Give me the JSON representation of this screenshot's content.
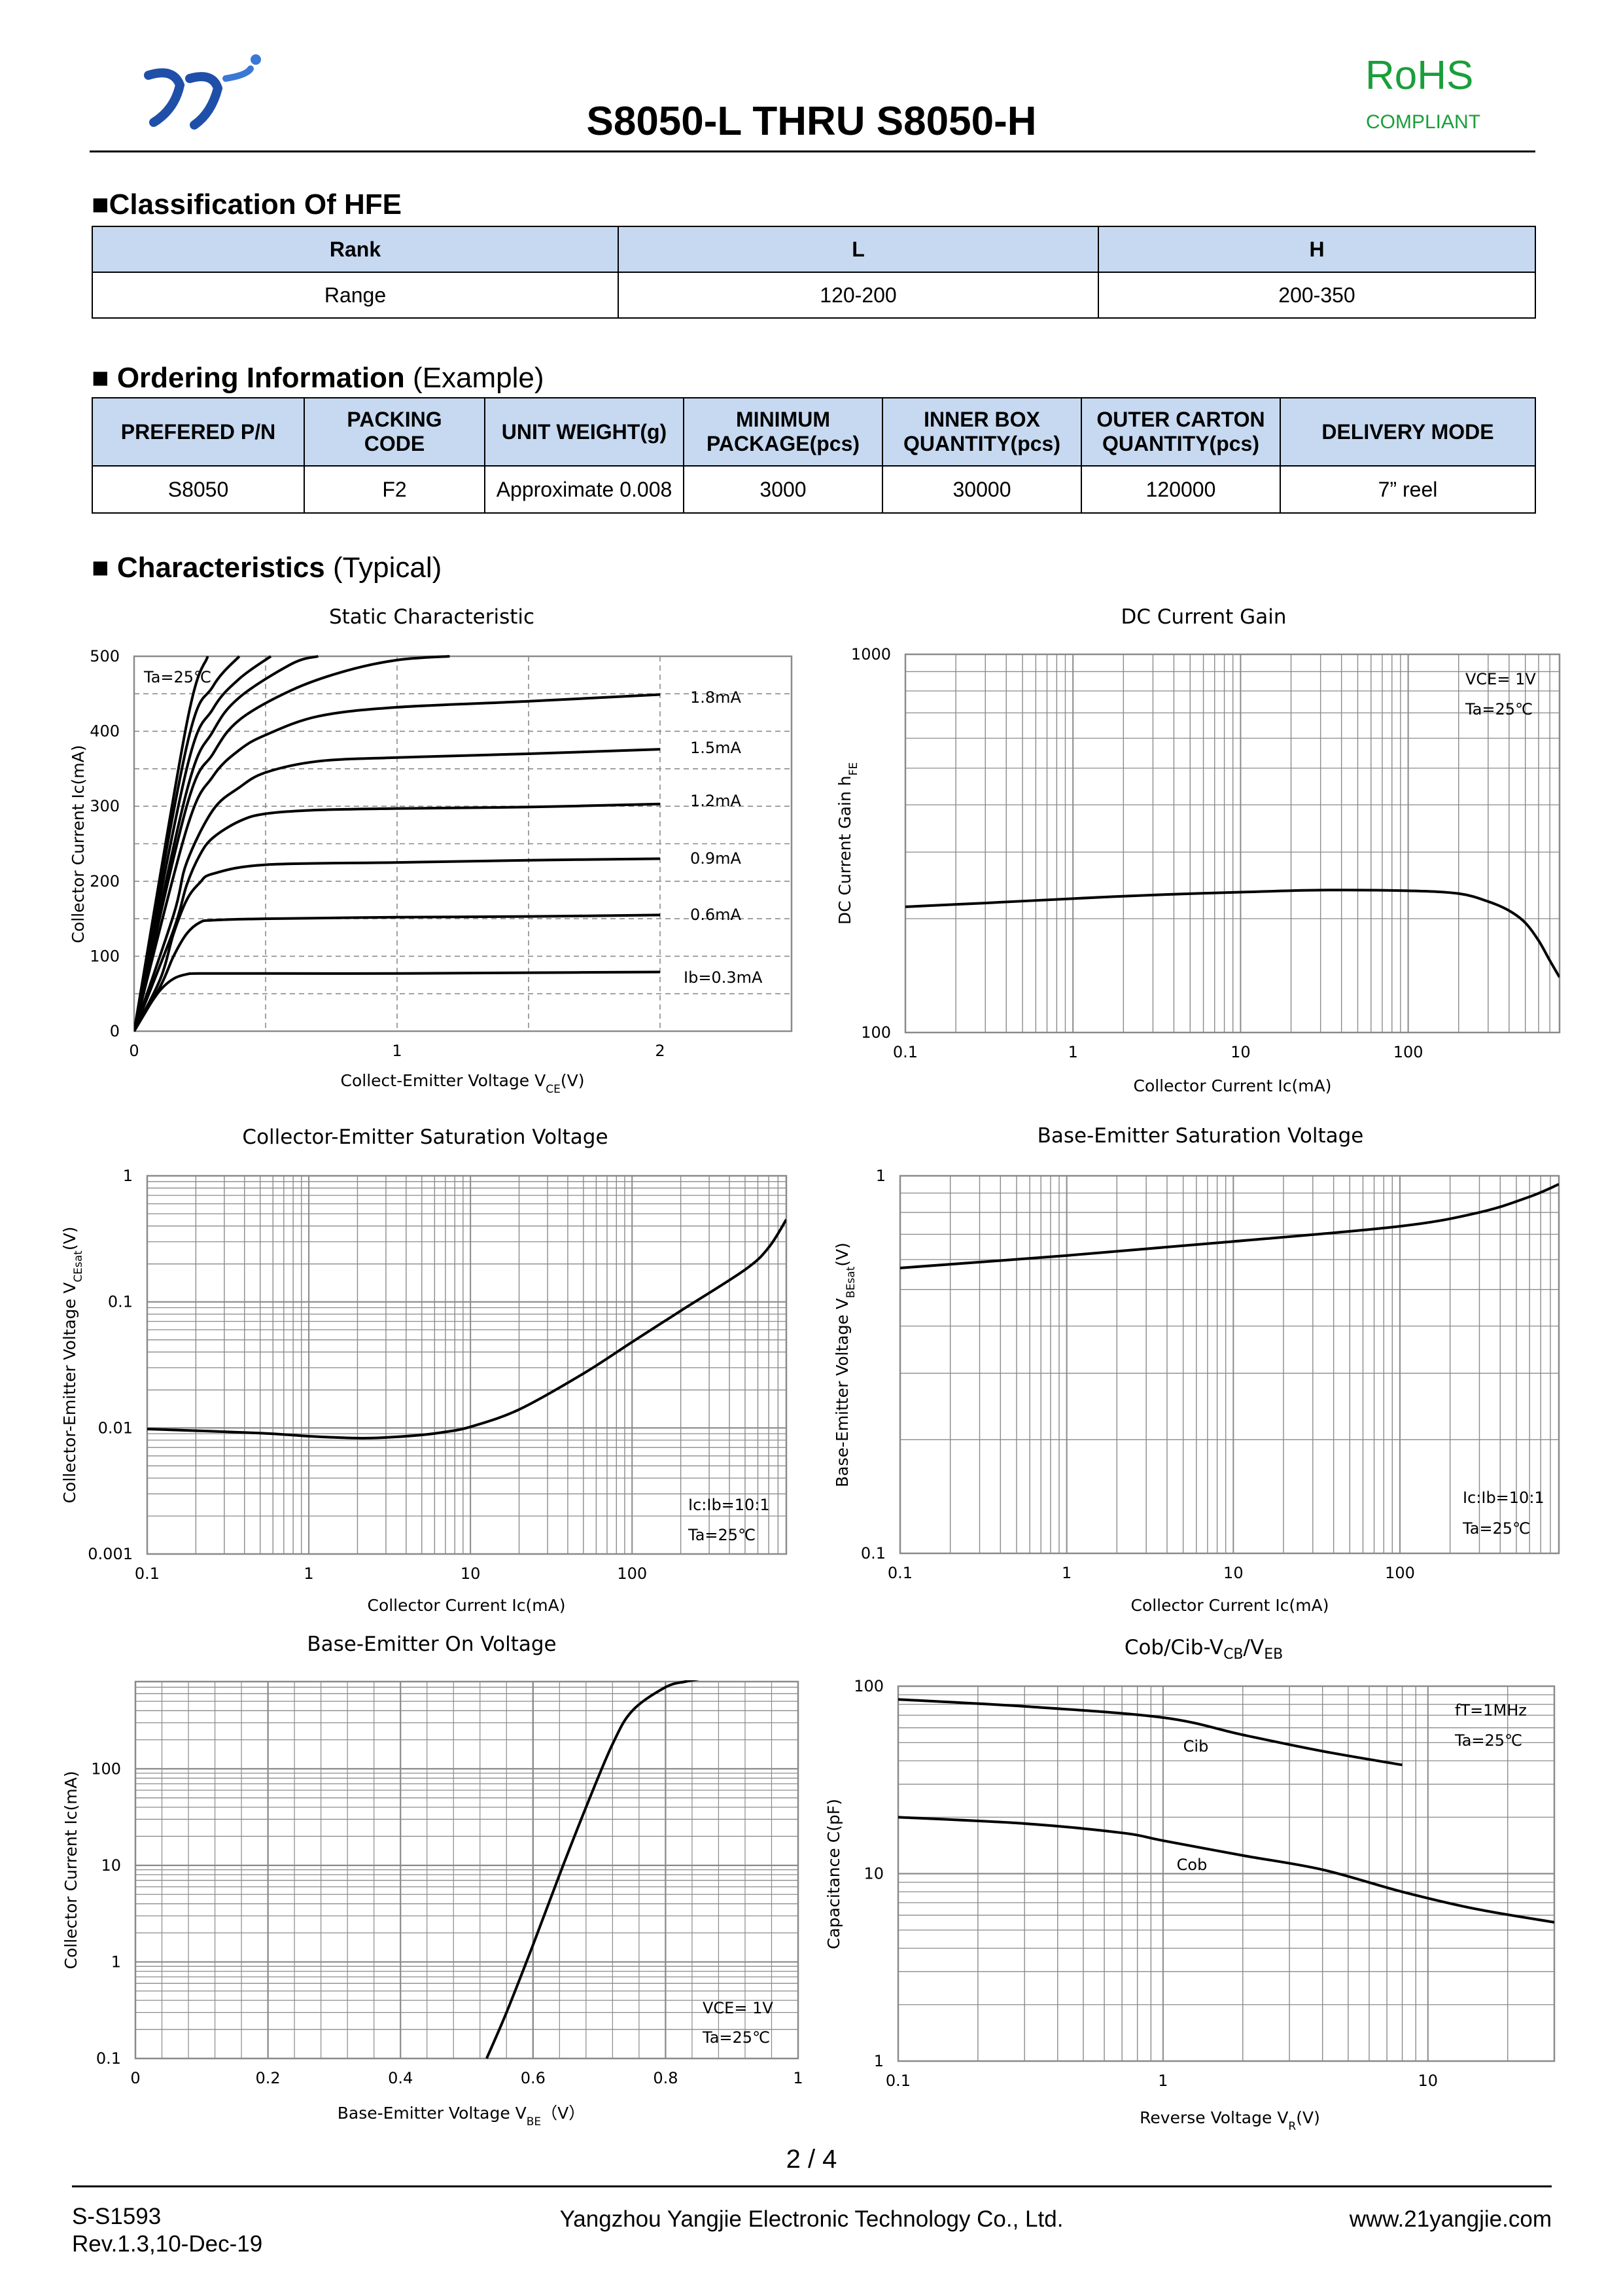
{
  "header": {
    "title": "S8050-L THRU S8050-H",
    "rohs": "RoHS",
    "compliant": "COMPLIANT",
    "logo_icon": "yj-logo-icon"
  },
  "hfe": {
    "heading": "Classification Of HFE",
    "headers": [
      "Rank",
      "L",
      "H"
    ],
    "row": [
      "Range",
      "120-200",
      "200-350"
    ]
  },
  "ordering": {
    "heading": "Ordering Information",
    "heading_note": "(Example)",
    "headers": [
      [
        "PREFERED P/N"
      ],
      [
        "PACKING",
        "CODE"
      ],
      [
        "UNIT WEIGHT(g)"
      ],
      [
        "MINIMUM",
        "PACKAGE(pcs)"
      ],
      [
        "INNER BOX",
        "QUANTITY(pcs)"
      ],
      [
        "OUTER CARTON",
        "QUANTITY(pcs)"
      ],
      [
        "DELIVERY MODE"
      ]
    ],
    "row": [
      "S8050",
      "F2",
      "Approximate 0.008",
      "3000",
      "30000",
      "120000",
      "7” reel"
    ]
  },
  "characteristics": {
    "heading": "Characteristics",
    "heading_note": "(Typical)"
  },
  "chart_data": [
    {
      "id": "static",
      "type": "line",
      "title": "Static Characteristic",
      "xlabel": "Collect-Emitter Voltage  VCE(V)",
      "ylabel": "Collector Current  Ic(mA)",
      "xlim": [
        0,
        2.5
      ],
      "ylim": [
        0,
        500
      ],
      "xticks": [
        "0",
        "1",
        "2"
      ],
      "yticks": [
        "0",
        "100",
        "200",
        "300",
        "400",
        "500"
      ],
      "annotations": [
        "Ta=25℃"
      ],
      "series": [
        {
          "name": "Ib=0.3mA",
          "x": [
            0,
            0.05,
            0.1,
            0.15,
            0.2,
            0.25,
            0.5,
            1,
            1.5,
            2
          ],
          "values": [
            0,
            30,
            55,
            70,
            76,
            77,
            77,
            77,
            78,
            79
          ]
        },
        {
          "name": "0.6mA",
          "x": [
            0,
            0.1,
            0.15,
            0.2,
            0.25,
            0.3,
            0.5,
            1,
            1.5,
            2
          ],
          "values": [
            0,
            60,
            100,
            130,
            145,
            148,
            150,
            152,
            153,
            155
          ]
        },
        {
          "name": "0.9mA",
          "x": [
            0,
            0.1,
            0.15,
            0.2,
            0.25,
            0.3,
            0.5,
            1,
            1.5,
            2
          ],
          "values": [
            0,
            70,
            130,
            175,
            198,
            210,
            222,
            225,
            228,
            230
          ]
        },
        {
          "name": "1.2mA",
          "x": [
            0,
            0.15,
            0.2,
            0.25,
            0.3,
            0.4,
            0.5,
            0.7,
            1,
            1.5,
            2
          ],
          "values": [
            0,
            135,
            195,
            235,
            258,
            280,
            290,
            295,
            297,
            299,
            303
          ]
        },
        {
          "name": "1.5mA",
          "x": [
            0,
            0.15,
            0.2,
            0.3,
            0.4,
            0.5,
            0.7,
            1,
            1.5,
            2
          ],
          "values": [
            0,
            155,
            225,
            295,
            325,
            345,
            360,
            365,
            370,
            376
          ]
        },
        {
          "name": "1.8mA",
          "x": [
            0,
            0.2,
            0.3,
            0.4,
            0.5,
            0.7,
            1,
            1.5,
            2
          ],
          "values": [
            0,
            270,
            340,
            375,
            395,
            420,
            432,
            440,
            449
          ]
        },
        {
          "name": "",
          "x": [
            0,
            0.2,
            0.3,
            0.4,
            0.6,
            0.8,
            1,
            1.2
          ],
          "values": [
            0,
            300,
            370,
            415,
            455,
            480,
            495,
            500
          ]
        },
        {
          "name": "",
          "x": [
            0,
            0.2,
            0.3,
            0.4,
            0.6,
            0.7
          ],
          "values": [
            0,
            320,
            400,
            445,
            490,
            500
          ]
        },
        {
          "name": "",
          "x": [
            0,
            0.2,
            0.3,
            0.4,
            0.52
          ],
          "values": [
            0,
            350,
            430,
            470,
            500
          ]
        },
        {
          "name": "",
          "x": [
            0,
            0.2,
            0.3,
            0.4
          ],
          "values": [
            0,
            380,
            460,
            500
          ]
        },
        {
          "name": "",
          "x": [
            0,
            0.2,
            0.28
          ],
          "values": [
            0,
            410,
            500
          ]
        }
      ]
    },
    {
      "id": "gain",
      "type": "line",
      "title": "DC Current Gain",
      "xlabel": "Collector Current  Ic(mA)",
      "ylabel": "DC Current Gain  hFE",
      "xscale": "log",
      "yscale": "log",
      "xlim": [
        0.1,
        800
      ],
      "ylim": [
        100,
        1000
      ],
      "xticks": [
        "0.1",
        "1",
        "10",
        "100"
      ],
      "yticks": [
        "100",
        "1000"
      ],
      "annotations": [
        "VCE= 1V",
        "Ta=25℃"
      ],
      "series": [
        {
          "name": "hFE",
          "x": [
            0.1,
            0.3,
            1,
            3,
            10,
            30,
            100,
            200,
            300,
            400,
            500,
            600,
            700,
            800
          ],
          "values": [
            215,
            220,
            226,
            231,
            235,
            238,
            237,
            233,
            222,
            210,
            195,
            175,
            155,
            140
          ]
        }
      ]
    },
    {
      "id": "vcesat",
      "type": "line",
      "title": "Collector-Emitter Saturation Voltage",
      "xlabel": "Collector Current  Ic(mA)",
      "ylabel": "Collector-Emitter Voltage  VCEsat(V)",
      "xscale": "log",
      "yscale": "log",
      "xlim": [
        0.1,
        900
      ],
      "ylim": [
        0.001,
        1
      ],
      "xticks": [
        "0.1",
        "1",
        "10",
        "100"
      ],
      "yticks": [
        "0.001",
        "0.01",
        "0.1",
        "1"
      ],
      "annotations": [
        "Ic:Ib=10:1",
        "Ta=25℃"
      ],
      "series": [
        {
          "name": "VCEsat",
          "x": [
            0.1,
            0.5,
            1,
            2,
            3,
            5,
            7,
            10,
            20,
            50,
            100,
            200,
            500,
            700,
            900
          ],
          "values": [
            0.0098,
            0.0091,
            0.0086,
            0.0083,
            0.0084,
            0.0088,
            0.0093,
            0.0102,
            0.014,
            0.027,
            0.048,
            0.085,
            0.18,
            0.27,
            0.45
          ]
        }
      ]
    },
    {
      "id": "vbesat",
      "type": "line",
      "title": "Base-Emitter Saturation Voltage",
      "xlabel": "Collector Current  Ic(mA)",
      "ylabel": "Base-Emitter Voltage  VBEsat(V)",
      "xscale": "log",
      "yscale": "log",
      "xlim": [
        0.1,
        900
      ],
      "ylim": [
        0.1,
        1
      ],
      "xticks": [
        "0.1",
        "1",
        "10",
        "100"
      ],
      "yticks": [
        "0.1",
        "1"
      ],
      "annotations": [
        "Ic:Ib=10:1",
        "Ta=25℃"
      ],
      "series": [
        {
          "name": "VBEsat",
          "x": [
            0.1,
            1,
            10,
            100,
            300,
            600,
            900
          ],
          "values": [
            0.57,
            0.615,
            0.67,
            0.735,
            0.8,
            0.88,
            0.95
          ]
        }
      ]
    },
    {
      "id": "vbeon",
      "type": "line",
      "title": "Base-Emitter On Voltage",
      "xlabel": "Base-Emitter Voltage  VBE（V）",
      "ylabel": "Collector Current  Ic(mA)",
      "yscale": "log",
      "xlim": [
        0,
        1
      ],
      "ylim": [
        0.1,
        800
      ],
      "xticks": [
        "0",
        "0.2",
        "0.4",
        "0.6",
        "0.8",
        "1"
      ],
      "yticks": [
        "0.1",
        "1",
        "10",
        "100"
      ],
      "annotations": [
        "VCE= 1V",
        "Ta=25℃"
      ],
      "series": [
        {
          "name": "Ic",
          "x": [
            0.53,
            0.56,
            0.6,
            0.64,
            0.68,
            0.72,
            0.75,
            0.8,
            0.83,
            0.85
          ],
          "values": [
            0.1,
            0.3,
            1.5,
            8,
            40,
            180,
            400,
            700,
            800,
            850
          ]
        }
      ]
    },
    {
      "id": "cap",
      "type": "line",
      "title": "Cob/Cib-VCB/VEB",
      "xlabel": "Reverse Voltage  VR(V)",
      "ylabel": "Capacitance  C(pF)",
      "xscale": "log",
      "yscale": "log",
      "xlim": [
        0.1,
        30
      ],
      "ylim": [
        1,
        100
      ],
      "xticks": [
        "0.1",
        "1",
        "10"
      ],
      "yticks": [
        "1",
        "10",
        "100"
      ],
      "annotations": [
        "fT=1MHz",
        "Ta=25℃"
      ],
      "series": [
        {
          "name": "Cib",
          "x": [
            0.1,
            0.3,
            1,
            2,
            4,
            8
          ],
          "values": [
            85,
            78,
            68,
            55,
            45,
            38
          ]
        },
        {
          "name": "Cob",
          "x": [
            0.1,
            0.3,
            0.7,
            1,
            2,
            4,
            8,
            15,
            30
          ],
          "values": [
            20,
            18.5,
            16.5,
            15,
            12.5,
            10.5,
            8,
            6.5,
            5.5
          ]
        }
      ]
    }
  ],
  "footer": {
    "page": "2 / 4",
    "doc_id": "S-S1593",
    "rev": "Rev.1.3,10-Dec-19",
    "company": "Yangzhou Yangjie Electronic Technology Co., Ltd.",
    "website": "www.21yangjie.com"
  }
}
